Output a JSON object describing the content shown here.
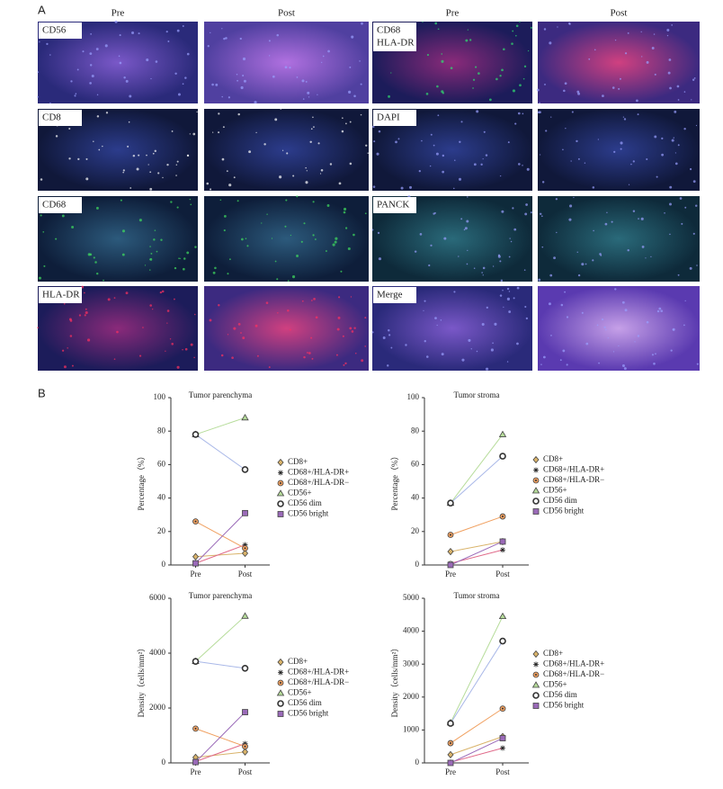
{
  "panels": {
    "a": "A",
    "b": "B"
  },
  "micrographs": {
    "columns": [
      "Pre",
      "Post",
      "Pre",
      "Post"
    ],
    "left_labels": [
      [
        "CD56"
      ],
      [
        "CD8"
      ],
      [
        "CD68"
      ],
      [
        "HLA-DR"
      ]
    ],
    "right_labels": [
      [
        "CD68",
        "HLA-DR"
      ],
      [
        "DAPI"
      ],
      [
        "PANCK"
      ],
      [
        "Merge"
      ]
    ]
  },
  "chart_data": [
    {
      "type": "line",
      "title": "Tumor parenchyma",
      "y_label": "Percentage（%）",
      "categories": [
        "Pre",
        "Post"
      ],
      "ylim": [
        0,
        100
      ],
      "yticks": [
        0,
        20,
        40,
        60,
        80,
        100
      ],
      "series": [
        {
          "name": "CD8+",
          "color": "#d9b36a",
          "marker": "diamond",
          "values": [
            5,
            7
          ]
        },
        {
          "name": "CD68+/HLA-DR+",
          "color": "#e06a8a",
          "marker": "star",
          "values": [
            1,
            12
          ]
        },
        {
          "name": "CD68+/HLA-DR−",
          "color": "#f0a060",
          "marker": "dotcircle",
          "values": [
            26,
            10
          ]
        },
        {
          "name": "CD56+",
          "color": "#b6dc9a",
          "marker": "triangle",
          "values": [
            78,
            88
          ]
        },
        {
          "name": "CD56 dim",
          "color": "#a9b8e8",
          "marker": "circle",
          "values": [
            78,
            57
          ]
        },
        {
          "name": "CD56 bright",
          "color": "#9a6ab8",
          "marker": "square",
          "values": [
            1,
            31
          ]
        }
      ]
    },
    {
      "type": "line",
      "title": "Tumor stroma",
      "y_label": "Percentage（%）",
      "categories": [
        "Pre",
        "Post"
      ],
      "ylim": [
        0,
        100
      ],
      "yticks": [
        0,
        20,
        40,
        60,
        80,
        100
      ],
      "series": [
        {
          "name": "CD8+",
          "color": "#d9b36a",
          "marker": "diamond",
          "values": [
            8,
            14
          ]
        },
        {
          "name": "CD68+/HLA-DR+",
          "color": "#e06a8a",
          "marker": "star",
          "values": [
            1,
            9
          ]
        },
        {
          "name": "CD68+/HLA-DR−",
          "color": "#f0a060",
          "marker": "dotcircle",
          "values": [
            18,
            29
          ]
        },
        {
          "name": "CD56+",
          "color": "#b6dc9a",
          "marker": "triangle",
          "values": [
            37,
            78
          ]
        },
        {
          "name": "CD56 dim",
          "color": "#a9b8e8",
          "marker": "circle",
          "values": [
            37,
            65
          ]
        },
        {
          "name": "CD56 bright",
          "color": "#9a6ab8",
          "marker": "square",
          "values": [
            0,
            14
          ]
        }
      ]
    },
    {
      "type": "line",
      "title": "Tumor parenchyma",
      "y_label": "Density（cells/mm²）",
      "categories": [
        "Pre",
        "Post"
      ],
      "ylim": [
        0,
        6000
      ],
      "yticks": [
        0,
        2000,
        4000,
        6000
      ],
      "series": [
        {
          "name": "CD8+",
          "color": "#d9b36a",
          "marker": "diamond",
          "values": [
            200,
            400
          ]
        },
        {
          "name": "CD68+/HLA-DR+",
          "color": "#e06a8a",
          "marker": "star",
          "values": [
            50,
            700
          ]
        },
        {
          "name": "CD68+/HLA-DR−",
          "color": "#f0a060",
          "marker": "dotcircle",
          "values": [
            1250,
            600
          ]
        },
        {
          "name": "CD56+",
          "color": "#b6dc9a",
          "marker": "triangle",
          "values": [
            3700,
            5350
          ]
        },
        {
          "name": "CD56 dim",
          "color": "#a9b8e8",
          "marker": "circle",
          "values": [
            3700,
            3450
          ]
        },
        {
          "name": "CD56 bright",
          "color": "#9a6ab8",
          "marker": "square",
          "values": [
            30,
            1850
          ]
        }
      ]
    },
    {
      "type": "line",
      "title": "Tumor stroma",
      "y_label": "Density（cells/mm²）",
      "categories": [
        "Pre",
        "Post"
      ],
      "ylim": [
        0,
        5000
      ],
      "yticks": [
        0,
        1000,
        2000,
        3000,
        4000,
        5000
      ],
      "series": [
        {
          "name": "CD8+",
          "color": "#d9b36a",
          "marker": "diamond",
          "values": [
            250,
            800
          ]
        },
        {
          "name": "CD68+/HLA-DR+",
          "color": "#e06a8a",
          "marker": "star",
          "values": [
            20,
            450
          ]
        },
        {
          "name": "CD68+/HLA-DR−",
          "color": "#f0a060",
          "marker": "dotcircle",
          "values": [
            600,
            1650
          ]
        },
        {
          "name": "CD56+",
          "color": "#b6dc9a",
          "marker": "triangle",
          "values": [
            1220,
            4450
          ]
        },
        {
          "name": "CD56 dim",
          "color": "#a9b8e8",
          "marker": "circle",
          "values": [
            1200,
            3700
          ]
        },
        {
          "name": "CD56 bright",
          "color": "#9a6ab8",
          "marker": "square",
          "values": [
            0,
            750
          ]
        }
      ]
    }
  ]
}
